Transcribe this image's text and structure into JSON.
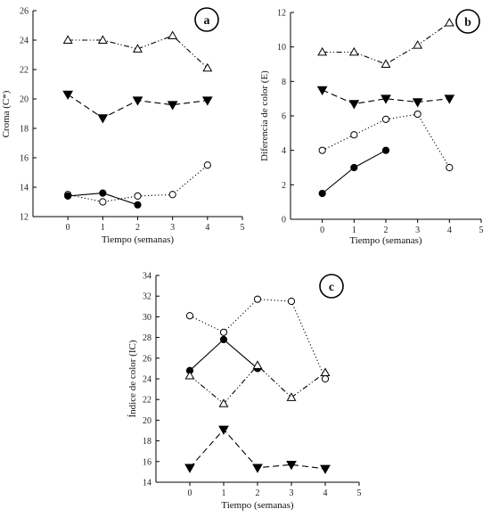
{
  "chart_data": [
    {
      "type": "line",
      "panel_label": "a",
      "xlabel": "Tiempo (semanas)",
      "ylabel": "Croma (C*)",
      "xlim": [
        -1,
        5
      ],
      "ylim": [
        12,
        26
      ],
      "xticks": [
        0,
        1,
        2,
        3,
        4,
        5
      ],
      "yticks": [
        12,
        14,
        16,
        18,
        20,
        22,
        24,
        26
      ],
      "grid": false,
      "legend": false,
      "series": [
        {
          "marker": "triangle-open",
          "line": "dash-dot-dot",
          "x": [
            0,
            1,
            2,
            3,
            4
          ],
          "y": [
            24.0,
            24.0,
            23.4,
            24.3,
            22.1
          ]
        },
        {
          "marker": "triangle-down-filled",
          "line": "long-dash",
          "x": [
            0,
            1,
            2,
            3,
            4
          ],
          "y": [
            20.3,
            18.7,
            19.9,
            19.6,
            19.9
          ]
        },
        {
          "marker": "circle-open",
          "line": "dotted",
          "x": [
            0,
            1,
            2,
            3,
            4
          ],
          "y": [
            13.5,
            13.0,
            13.4,
            13.5,
            15.5
          ]
        },
        {
          "marker": "circle-filled",
          "line": "solid",
          "x": [
            0,
            1,
            2
          ],
          "y": [
            13.4,
            13.6,
            12.8
          ]
        }
      ]
    },
    {
      "type": "line",
      "panel_label": "b",
      "xlabel": "Tiempo (semanas)",
      "ylabel": "Diferencia de color (E)",
      "xlim": [
        -1,
        5
      ],
      "ylim": [
        0,
        12
      ],
      "xticks": [
        0,
        1,
        2,
        3,
        4,
        5
      ],
      "yticks": [
        0,
        2,
        4,
        6,
        8,
        10,
        12
      ],
      "grid": false,
      "legend": false,
      "series": [
        {
          "marker": "triangle-open",
          "line": "dash-dot-dot",
          "x": [
            0,
            1,
            2,
            3,
            4
          ],
          "y": [
            9.7,
            9.7,
            9.0,
            10.1,
            11.4
          ]
        },
        {
          "marker": "triangle-down-filled",
          "line": "long-dash",
          "x": [
            0,
            1,
            2,
            3,
            4
          ],
          "y": [
            7.5,
            6.7,
            7.0,
            6.8,
            7.0
          ]
        },
        {
          "marker": "circle-open",
          "line": "dotted",
          "x": [
            0,
            1,
            2,
            3,
            4
          ],
          "y": [
            4.0,
            4.9,
            5.8,
            6.1,
            3.0
          ]
        },
        {
          "marker": "circle-filled",
          "line": "solid",
          "x": [
            0,
            1,
            2
          ],
          "y": [
            1.5,
            3.0,
            4.0
          ]
        }
      ]
    },
    {
      "type": "line",
      "panel_label": "c",
      "xlabel": "Tiempo (semanas)",
      "ylabel": "Índice de color (IC)",
      "xlim": [
        -1,
        5
      ],
      "ylim": [
        14,
        34
      ],
      "xticks": [
        0,
        1,
        2,
        3,
        4,
        5
      ],
      "yticks": [
        14,
        16,
        18,
        20,
        22,
        24,
        26,
        28,
        30,
        32,
        34
      ],
      "grid": false,
      "legend": false,
      "series": [
        {
          "marker": "circle-open",
          "line": "dotted",
          "x": [
            0,
            1,
            2,
            3,
            4
          ],
          "y": [
            30.1,
            28.5,
            31.7,
            31.5,
            24.0
          ]
        },
        {
          "marker": "circle-filled",
          "line": "solid",
          "x": [
            0,
            1,
            2
          ],
          "y": [
            24.8,
            27.8,
            25.0
          ]
        },
        {
          "marker": "triangle-open",
          "line": "dash-dot-dot",
          "x": [
            0,
            1,
            2,
            3,
            4
          ],
          "y": [
            24.3,
            21.6,
            25.3,
            22.2,
            24.6
          ]
        },
        {
          "marker": "triangle-down-filled",
          "line": "long-dash",
          "x": [
            0,
            1,
            2,
            3,
            4
          ],
          "y": [
            15.4,
            19.1,
            15.4,
            15.7,
            15.3
          ]
        }
      ]
    }
  ]
}
